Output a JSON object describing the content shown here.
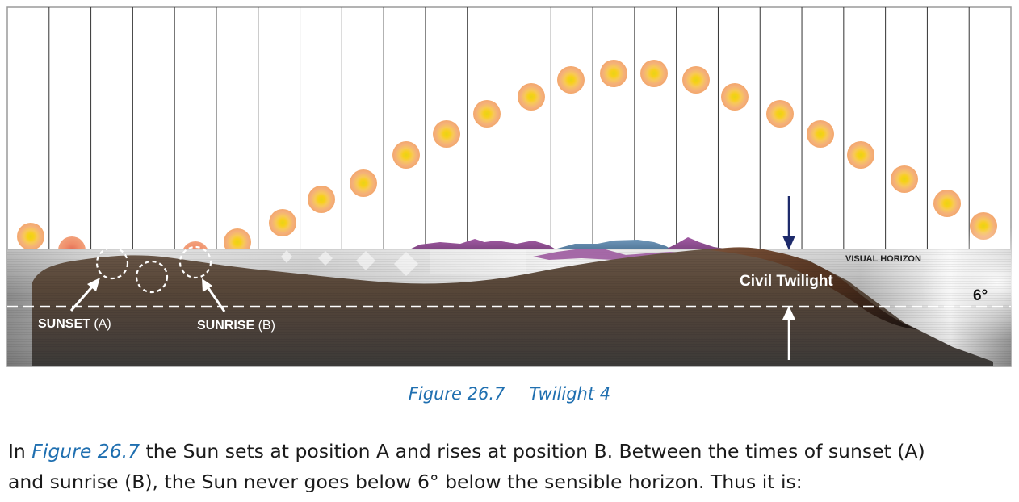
{
  "figure": {
    "labels": {
      "sunset": "SUNSET",
      "sunset_pos": "(A)",
      "sunrise": "SUNRISE",
      "sunrise_pos": "(B)",
      "visual_horizon": "VISUAL HORIZON",
      "civil_twilight": "Civil Twilight",
      "depression_angle": "6°"
    },
    "colors": {
      "sun_core": "#f7d117",
      "sun_halo": "#f4a15c",
      "ground": "#5b4a3e",
      "twilight_zone": "#8b8b8b",
      "mountains_purple": "#8e4d8f",
      "mountains_blue": "#5f86a8",
      "arrow_navy": "#1d2a6b"
    },
    "sun_sequence_count": 24
  },
  "caption": {
    "number": "Figure 26.7",
    "title": "Twilight 4"
  },
  "text": {
    "line1_prefix": "In ",
    "line1_ref": "Figure 26.7",
    "line1_rest": " the Sun sets at position A and rises at position B. Between the times of sunset (A)",
    "line2": "and sunrise (B), the Sun never goes below 6° below the sensible horizon. Thus it is:"
  }
}
